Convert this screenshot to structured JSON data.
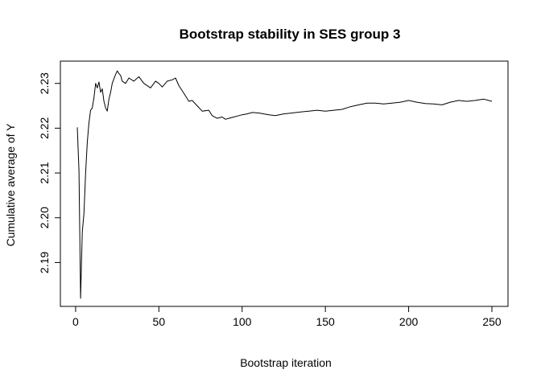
{
  "chart_data": {
    "type": "line",
    "title": "Bootstrap stability in SES group 3",
    "xlabel": "Bootstrap iteration",
    "ylabel": "Cumulative average of Y",
    "xlim": [
      1,
      250
    ],
    "ylim": [
      2.182,
      2.233
    ],
    "x_ticks": [
      0,
      50,
      100,
      150,
      200,
      250
    ],
    "y_ticks": [
      2.19,
      2.2,
      2.21,
      2.22,
      2.23
    ],
    "x_tick_labels": [
      "0",
      "50",
      "100",
      "150",
      "200",
      "250"
    ],
    "y_tick_labels": [
      "2.19",
      "2.20",
      "2.21",
      "2.22",
      "2.23"
    ],
    "frame": true,
    "grid": false,
    "series": [
      {
        "color": "#000000",
        "x": [
          1,
          2,
          3,
          4,
          5,
          6,
          7,
          8,
          9,
          10,
          11,
          12,
          13,
          14,
          15,
          16,
          17,
          18,
          19,
          20,
          21,
          22,
          23,
          24,
          25,
          26,
          27,
          28,
          30,
          32,
          35,
          38,
          41,
          45,
          48,
          50,
          52,
          55,
          58,
          60,
          62,
          65,
          68,
          70,
          73,
          76,
          80,
          82,
          85,
          88,
          90,
          92,
          95,
          98,
          100,
          103,
          106,
          110,
          113,
          116,
          120,
          125,
          130,
          135,
          140,
          145,
          150,
          155,
          160,
          165,
          170,
          175,
          180,
          185,
          190,
          195,
          200,
          205,
          210,
          215,
          220,
          225,
          230,
          235,
          240,
          245,
          250
        ],
        "y": [
          2.2202,
          2.2105,
          2.182,
          2.1968,
          2.201,
          2.2098,
          2.2168,
          2.2212,
          2.224,
          2.2245,
          2.2268,
          2.23,
          2.229,
          2.2303,
          2.228,
          2.2288,
          2.226,
          2.2245,
          2.2238,
          2.2265,
          2.228,
          2.23,
          2.231,
          2.232,
          2.2328,
          2.2322,
          2.2318,
          2.2305,
          2.23,
          2.2312,
          2.2305,
          2.2315,
          2.23,
          2.229,
          2.2305,
          2.23,
          2.2292,
          2.2305,
          2.2308,
          2.2312,
          2.2295,
          2.2278,
          2.226,
          2.2262,
          2.225,
          2.2238,
          2.224,
          2.2228,
          2.2222,
          2.2225,
          2.222,
          2.2222,
          2.2225,
          2.2228,
          2.223,
          2.2232,
          2.2235,
          2.2234,
          2.2232,
          2.223,
          2.2228,
          2.2232,
          2.2234,
          2.2236,
          2.2238,
          2.224,
          2.2238,
          2.224,
          2.2242,
          2.2248,
          2.2252,
          2.2256,
          2.2256,
          2.2254,
          2.2256,
          2.2258,
          2.2262,
          2.2258,
          2.2255,
          2.2254,
          2.2252,
          2.2258,
          2.2262,
          2.226,
          2.2262,
          2.2265,
          2.226
        ]
      }
    ]
  }
}
